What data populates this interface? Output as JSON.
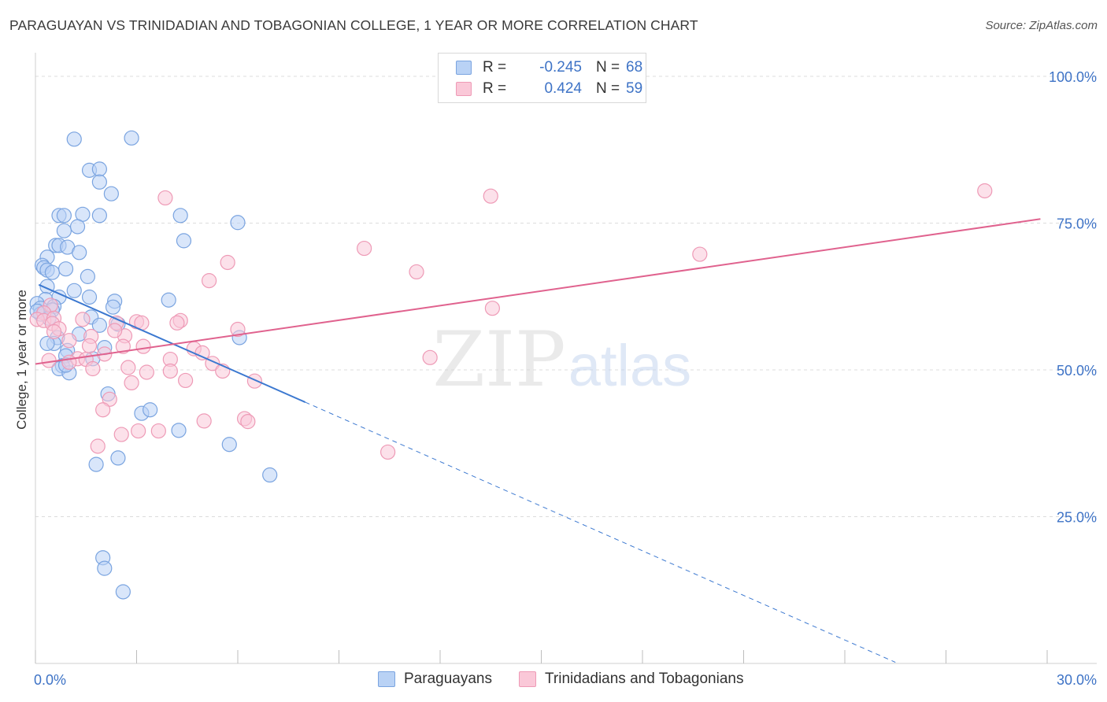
{
  "title": "PARAGUAYAN VS TRINIDADIAN AND TOBAGONIAN COLLEGE, 1 YEAR OR MORE CORRELATION CHART",
  "source": "Source: ZipAtlas.com",
  "watermark": {
    "zip": "ZIP",
    "atlas": "atlas"
  },
  "legend_top": {
    "r_label": "R =",
    "n_label": "N =",
    "rows": [
      {
        "series": "Paraguayans",
        "r": "-0.245",
        "n": "68",
        "fill": "#b9d2f5",
        "stroke": "#7aa4e0"
      },
      {
        "series": "Trinidadians and Tobagonians",
        "r": "0.424",
        "n": "59",
        "fill": "#fac8d8",
        "stroke": "#ee9ab6"
      }
    ]
  },
  "legend_bottom": [
    {
      "label": "Paraguayans",
      "fill": "#b9d2f5",
      "stroke": "#7aa4e0"
    },
    {
      "label": "Trinidadians and Tobagonians",
      "fill": "#fac8d8",
      "stroke": "#ee9ab6"
    }
  ],
  "chart_data": {
    "type": "scatter",
    "title": "PARAGUAYAN VS TRINIDADIAN AND TOBAGONIAN COLLEGE, 1 YEAR OR MORE CORRELATION CHART",
    "xlabel": "",
    "ylabel": "College, 1 year or more",
    "xlim": [
      0,
      30
    ],
    "ylim": [
      0,
      100
    ],
    "x_tick_labels": [
      "0.0%",
      "30.0%"
    ],
    "y_tick_labels": [
      "25.0%",
      "50.0%",
      "75.0%",
      "100.0%"
    ],
    "y_gridlines": [
      25,
      50,
      75,
      100
    ],
    "grid": "horizontal dashed",
    "legend_position": "top-center",
    "series": [
      {
        "name": "Paraguayans",
        "color": "#7aa4e0",
        "fill": "#b9d2f5",
        "line_color": "#3b78d0",
        "R": -0.245,
        "N": 68,
        "trend": {
          "x0": 0.1,
          "y0": 64.5,
          "x1": 8.0,
          "y1": 44.5,
          "dashed_to_x": 25.5
        },
        "points": [
          [
            1.15,
            89.3
          ],
          [
            2.85,
            89.5
          ],
          [
            1.6,
            84.0
          ],
          [
            1.9,
            84.2
          ],
          [
            1.9,
            82.0
          ],
          [
            2.25,
            80.0
          ],
          [
            4.3,
            76.3
          ],
          [
            0.7,
            76.3
          ],
          [
            0.85,
            76.3
          ],
          [
            1.4,
            76.5
          ],
          [
            1.9,
            76.3
          ],
          [
            6.0,
            75.1
          ],
          [
            1.25,
            74.4
          ],
          [
            0.85,
            73.7
          ],
          [
            4.4,
            72.0
          ],
          [
            0.6,
            71.2
          ],
          [
            0.7,
            71.2
          ],
          [
            0.95,
            70.9
          ],
          [
            0.35,
            69.2
          ],
          [
            1.3,
            70.0
          ],
          [
            0.2,
            67.8
          ],
          [
            0.25,
            67.4
          ],
          [
            0.35,
            67.0
          ],
          [
            0.5,
            66.6
          ],
          [
            0.9,
            67.2
          ],
          [
            1.55,
            65.9
          ],
          [
            0.35,
            64.2
          ],
          [
            1.15,
            63.5
          ],
          [
            1.6,
            62.4
          ],
          [
            0.3,
            62.0
          ],
          [
            0.05,
            61.3
          ],
          [
            0.7,
            62.4
          ],
          [
            2.35,
            61.7
          ],
          [
            3.95,
            61.9
          ],
          [
            0.55,
            60.8
          ],
          [
            0.15,
            60.5
          ],
          [
            0.5,
            60.2
          ],
          [
            0.15,
            59.5
          ],
          [
            0.05,
            60.0
          ],
          [
            2.3,
            60.7
          ],
          [
            1.65,
            59.0
          ],
          [
            0.4,
            58.8
          ],
          [
            1.9,
            57.6
          ],
          [
            2.45,
            57.8
          ],
          [
            0.65,
            55.5
          ],
          [
            6.05,
            55.5
          ],
          [
            1.3,
            56.1
          ],
          [
            0.55,
            54.5
          ],
          [
            0.35,
            54.5
          ],
          [
            2.05,
            53.8
          ],
          [
            0.95,
            53.3
          ],
          [
            0.9,
            52.4
          ],
          [
            1.7,
            51.9
          ],
          [
            0.8,
            50.7
          ],
          [
            0.7,
            50.2
          ],
          [
            1.0,
            49.5
          ],
          [
            2.15,
            45.9
          ],
          [
            3.15,
            42.6
          ],
          [
            3.4,
            43.2
          ],
          [
            4.25,
            39.7
          ],
          [
            5.75,
            37.3
          ],
          [
            2.45,
            35.0
          ],
          [
            1.8,
            33.9
          ],
          [
            6.95,
            32.1
          ],
          [
            2.0,
            18.0
          ],
          [
            2.05,
            16.2
          ],
          [
            2.6,
            12.2
          ],
          [
            0.9,
            50.8
          ]
        ]
      },
      {
        "name": "Trinidadians and Tobagonians",
        "color": "#ee9ab6",
        "fill": "#fac8d8",
        "line_color": "#e0628e",
        "R": 0.424,
        "N": 59,
        "trend": {
          "x0": 0.0,
          "y0": 51.0,
          "x1": 29.8,
          "y1": 75.7
        },
        "points": [
          [
            28.15,
            80.5
          ],
          [
            13.5,
            79.6
          ],
          [
            3.85,
            79.3
          ],
          [
            9.75,
            70.7
          ],
          [
            19.7,
            69.7
          ],
          [
            5.7,
            68.3
          ],
          [
            11.3,
            66.7
          ],
          [
            5.15,
            65.2
          ],
          [
            13.55,
            60.5
          ],
          [
            0.45,
            61.0
          ],
          [
            0.25,
            59.7
          ],
          [
            0.05,
            58.6
          ],
          [
            0.25,
            58.4
          ],
          [
            0.55,
            58.8
          ],
          [
            1.4,
            58.6
          ],
          [
            0.5,
            57.9
          ],
          [
            0.7,
            57.0
          ],
          [
            3.0,
            58.2
          ],
          [
            3.15,
            58.0
          ],
          [
            4.3,
            58.4
          ],
          [
            4.2,
            58.0
          ],
          [
            2.4,
            58.0
          ],
          [
            0.55,
            56.5
          ],
          [
            1.65,
            55.7
          ],
          [
            2.65,
            55.8
          ],
          [
            2.35,
            56.7
          ],
          [
            6.0,
            56.9
          ],
          [
            1.0,
            55.0
          ],
          [
            1.6,
            54.1
          ],
          [
            2.6,
            54.0
          ],
          [
            3.2,
            54.0
          ],
          [
            4.7,
            53.6
          ],
          [
            4.95,
            52.9
          ],
          [
            2.05,
            52.7
          ],
          [
            1.25,
            51.9
          ],
          [
            1.5,
            51.8
          ],
          [
            1.0,
            51.3
          ],
          [
            4.0,
            51.8
          ],
          [
            0.4,
            51.6
          ],
          [
            5.25,
            51.1
          ],
          [
            11.7,
            52.1
          ],
          [
            2.75,
            50.4
          ],
          [
            1.7,
            50.2
          ],
          [
            3.3,
            49.6
          ],
          [
            5.55,
            49.8
          ],
          [
            4.0,
            49.8
          ],
          [
            2.85,
            47.8
          ],
          [
            4.45,
            48.2
          ],
          [
            6.5,
            48.1
          ],
          [
            2.2,
            45.0
          ],
          [
            2.0,
            43.2
          ],
          [
            5.0,
            41.3
          ],
          [
            6.2,
            41.7
          ],
          [
            6.3,
            41.2
          ],
          [
            3.05,
            39.6
          ],
          [
            2.55,
            39.0
          ],
          [
            3.65,
            39.6
          ],
          [
            1.85,
            37.0
          ],
          [
            10.45,
            36.0
          ]
        ]
      }
    ]
  }
}
